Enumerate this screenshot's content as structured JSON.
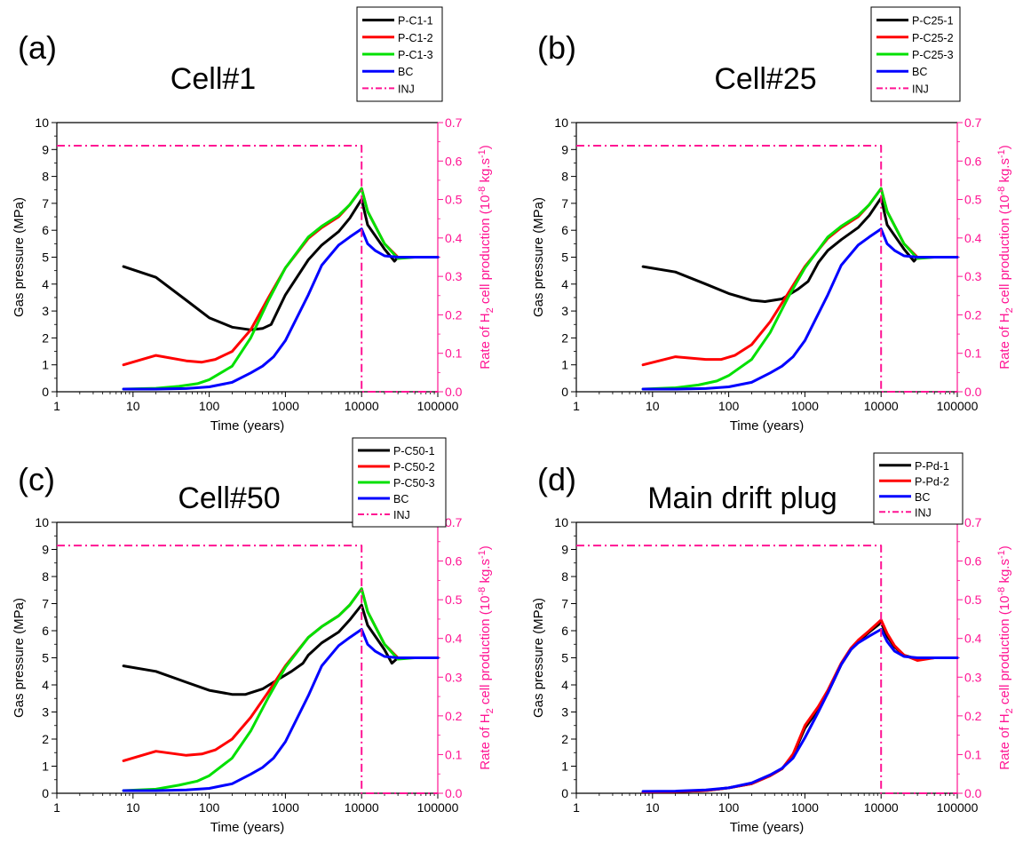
{
  "colors": {
    "black": "#000000",
    "red": "#ff0000",
    "green": "#00e000",
    "blue": "#0000ff",
    "inj": "#ff1493"
  },
  "shared": {
    "xlabel": "Time (years)",
    "ylabel_left": "Gas pressure (MPa)",
    "ylabel_right_prefix": "Rate of H",
    "ylabel_right_sub": "2",
    "ylabel_right_mid": " cell production (10",
    "ylabel_right_sup1": "-8",
    "ylabel_right_mid2": " kg.s",
    "ylabel_right_sup2": "-1",
    "ylabel_right_end": ")",
    "xticks": [
      "1",
      "10",
      "100",
      "1000",
      "10000",
      "100000"
    ],
    "yticks_left": [
      "0",
      "1",
      "2",
      "3",
      "4",
      "5",
      "6",
      "7",
      "8",
      "9",
      "10"
    ],
    "yticks_right": [
      "0.0",
      "0.1",
      "0.2",
      "0.3",
      "0.4",
      "0.5",
      "0.6",
      "0.7"
    ]
  },
  "chart_data": [
    {
      "type": "line",
      "panel_label": "(a)",
      "title": "Cell#1",
      "x_scale": "log",
      "xlim": [
        1,
        100000
      ],
      "ylim": [
        0,
        10
      ],
      "ylim_right": [
        0,
        0.7
      ],
      "legend": "top-right",
      "series": [
        {
          "name": "P-C1-1",
          "color": "black",
          "axis": "left",
          "x": [
            7.5,
            20,
            50,
            100,
            200,
            350,
            500,
            650,
            1000,
            2000,
            3000,
            5000,
            7000,
            10000,
            12000,
            20000,
            27000,
            30000,
            50000,
            100000
          ],
          "y": [
            4.65,
            4.25,
            3.4,
            2.75,
            2.4,
            2.3,
            2.35,
            2.5,
            3.6,
            4.9,
            5.45,
            5.95,
            6.45,
            7.15,
            6.2,
            5.3,
            4.85,
            5.0,
            5.0,
            5.0
          ]
        },
        {
          "name": "P-C1-2",
          "color": "red",
          "axis": "left",
          "x": [
            7.5,
            20,
            50,
            80,
            120,
            200,
            350,
            600,
            1000,
            2000,
            3000,
            5000,
            7000,
            10000,
            12000,
            20000,
            30000,
            50000,
            100000
          ],
          "y": [
            1.0,
            1.35,
            1.15,
            1.1,
            1.2,
            1.5,
            2.3,
            3.5,
            4.6,
            5.7,
            6.1,
            6.5,
            6.95,
            7.55,
            6.7,
            5.5,
            5.0,
            5.0,
            5.0
          ]
        },
        {
          "name": "P-C1-3",
          "color": "green",
          "axis": "left",
          "x": [
            7.5,
            20,
            40,
            70,
            100,
            200,
            350,
            600,
            1000,
            2000,
            3000,
            5000,
            7000,
            10000,
            12000,
            20000,
            30000,
            50000,
            100000
          ],
          "y": [
            0.1,
            0.13,
            0.2,
            0.3,
            0.45,
            0.95,
            2.0,
            3.4,
            4.6,
            5.75,
            6.15,
            6.55,
            6.95,
            7.55,
            6.7,
            5.5,
            4.95,
            5.0,
            5.0
          ]
        },
        {
          "name": "BC",
          "color": "blue",
          "axis": "left",
          "x": [
            7.5,
            20,
            50,
            100,
            200,
            350,
            500,
            700,
            1000,
            2000,
            3000,
            5000,
            7000,
            10000,
            12000,
            15000,
            20000,
            30000,
            50000,
            100000
          ],
          "y": [
            0.1,
            0.1,
            0.12,
            0.18,
            0.35,
            0.7,
            0.95,
            1.3,
            1.9,
            3.6,
            4.7,
            5.45,
            5.75,
            6.05,
            5.5,
            5.25,
            5.05,
            5.0,
            5.0,
            5.0
          ]
        },
        {
          "name": "INJ",
          "color": "inj",
          "axis": "right",
          "dash": true,
          "x": [
            1,
            10000,
            10000,
            100000
          ],
          "y": [
            0.64,
            0.64,
            0.0,
            0.0
          ]
        }
      ]
    },
    {
      "type": "line",
      "panel_label": "(b)",
      "title": "Cell#25",
      "x_scale": "log",
      "xlim": [
        1,
        100000
      ],
      "ylim": [
        0,
        10
      ],
      "ylim_right": [
        0,
        0.7
      ],
      "legend": "top-right",
      "series": [
        {
          "name": "P-C25-1",
          "color": "black",
          "axis": "left",
          "x": [
            7.5,
            20,
            50,
            100,
            200,
            300,
            500,
            800,
            1100,
            1500,
            2000,
            3000,
            5000,
            7000,
            10000,
            12000,
            20000,
            27000,
            30000,
            50000,
            100000
          ],
          "y": [
            4.65,
            4.45,
            4.0,
            3.65,
            3.4,
            3.35,
            3.45,
            3.8,
            4.1,
            4.8,
            5.25,
            5.65,
            6.1,
            6.55,
            7.2,
            6.2,
            5.3,
            4.85,
            5.0,
            5.0,
            5.0
          ]
        },
        {
          "name": "P-C25-2",
          "color": "red",
          "axis": "left",
          "x": [
            7.5,
            20,
            50,
            80,
            120,
            200,
            350,
            600,
            1000,
            2000,
            3000,
            5000,
            7000,
            10000,
            12000,
            20000,
            30000,
            50000,
            100000
          ],
          "y": [
            1.0,
            1.3,
            1.2,
            1.2,
            1.35,
            1.75,
            2.6,
            3.65,
            4.65,
            5.7,
            6.1,
            6.5,
            6.95,
            7.55,
            6.7,
            5.5,
            5.0,
            5.0,
            5.0
          ]
        },
        {
          "name": "P-C25-3",
          "color": "green",
          "axis": "left",
          "x": [
            7.5,
            20,
            40,
            70,
            100,
            200,
            350,
            600,
            1000,
            2000,
            3000,
            5000,
            7000,
            10000,
            12000,
            20000,
            30000,
            50000,
            100000
          ],
          "y": [
            0.1,
            0.15,
            0.25,
            0.4,
            0.6,
            1.2,
            2.2,
            3.5,
            4.6,
            5.75,
            6.15,
            6.55,
            6.95,
            7.55,
            6.7,
            5.5,
            4.95,
            5.0,
            5.0
          ]
        },
        {
          "name": "BC",
          "color": "blue",
          "axis": "left",
          "x": [
            7.5,
            20,
            50,
            100,
            200,
            350,
            500,
            700,
            1000,
            2000,
            3000,
            5000,
            7000,
            10000,
            12000,
            15000,
            20000,
            30000,
            50000,
            100000
          ],
          "y": [
            0.1,
            0.1,
            0.12,
            0.18,
            0.35,
            0.7,
            0.95,
            1.3,
            1.9,
            3.6,
            4.7,
            5.45,
            5.75,
            6.05,
            5.5,
            5.25,
            5.05,
            5.0,
            5.0,
            5.0
          ]
        },
        {
          "name": "INJ",
          "color": "inj",
          "axis": "right",
          "dash": true,
          "x": [
            1,
            10000,
            10000,
            100000
          ],
          "y": [
            0.64,
            0.64,
            0.0,
            0.0
          ]
        }
      ]
    },
    {
      "type": "line",
      "panel_label": "(c)",
      "title": "Cell#50",
      "x_scale": "log",
      "xlim": [
        1,
        100000
      ],
      "ylim": [
        0,
        10
      ],
      "ylim_right": [
        0,
        0.7
      ],
      "legend": "top-right",
      "series": [
        {
          "name": "P-C50-1",
          "color": "black",
          "axis": "left",
          "x": [
            7.5,
            20,
            50,
            100,
            200,
            300,
            500,
            800,
            1200,
            1700,
            2000,
            3000,
            5000,
            7000,
            10000,
            12000,
            20000,
            25000,
            30000,
            50000,
            100000
          ],
          "y": [
            4.7,
            4.5,
            4.1,
            3.8,
            3.65,
            3.65,
            3.85,
            4.2,
            4.5,
            4.8,
            5.1,
            5.55,
            5.95,
            6.4,
            6.95,
            6.2,
            5.3,
            4.8,
            5.0,
            5.0,
            5.0
          ]
        },
        {
          "name": "P-C50-2",
          "color": "red",
          "axis": "left",
          "x": [
            7.5,
            20,
            50,
            80,
            120,
            200,
            350,
            600,
            1000,
            2000,
            3000,
            5000,
            7000,
            10000,
            12000,
            20000,
            30000,
            50000,
            100000
          ],
          "y": [
            1.2,
            1.55,
            1.4,
            1.45,
            1.6,
            2.0,
            2.8,
            3.75,
            4.7,
            5.75,
            6.15,
            6.55,
            6.95,
            7.55,
            6.7,
            5.5,
            5.0,
            5.0,
            5.0
          ]
        },
        {
          "name": "P-C50-3",
          "color": "green",
          "axis": "left",
          "x": [
            7.5,
            20,
            40,
            70,
            100,
            200,
            350,
            600,
            1000,
            2000,
            3000,
            5000,
            7000,
            10000,
            12000,
            20000,
            30000,
            50000,
            100000
          ],
          "y": [
            0.1,
            0.15,
            0.3,
            0.45,
            0.65,
            1.3,
            2.3,
            3.55,
            4.65,
            5.75,
            6.15,
            6.55,
            6.95,
            7.55,
            6.7,
            5.5,
            4.95,
            5.0,
            5.0
          ]
        },
        {
          "name": "BC",
          "color": "blue",
          "axis": "left",
          "x": [
            7.5,
            20,
            50,
            100,
            200,
            350,
            500,
            700,
            1000,
            2000,
            3000,
            5000,
            7000,
            10000,
            12000,
            15000,
            20000,
            30000,
            50000,
            100000
          ],
          "y": [
            0.1,
            0.1,
            0.12,
            0.18,
            0.35,
            0.7,
            0.95,
            1.3,
            1.9,
            3.6,
            4.7,
            5.45,
            5.75,
            6.05,
            5.5,
            5.25,
            5.05,
            5.0,
            5.0,
            5.0
          ]
        },
        {
          "name": "INJ",
          "color": "inj",
          "axis": "right",
          "dash": true,
          "x": [
            1,
            10000,
            10000,
            100000
          ],
          "y": [
            0.64,
            0.64,
            0.0,
            0.0
          ]
        }
      ]
    },
    {
      "type": "line",
      "panel_label": "(d)",
      "title": "Main drift plug",
      "x_scale": "log",
      "xlim": [
        1,
        100000
      ],
      "ylim": [
        0,
        10
      ],
      "ylim_right": [
        0,
        0.7
      ],
      "legend": "top-right",
      "series": [
        {
          "name": "P-Pd-1",
          "color": "black",
          "axis": "left",
          "x": [
            7.5,
            20,
            50,
            100,
            200,
            350,
            500,
            700,
            1000,
            1500,
            2000,
            3000,
            4000,
            5000,
            7000,
            10000,
            12000,
            15000,
            20000,
            30000,
            50000,
            100000
          ],
          "y": [
            0.05,
            0.06,
            0.1,
            0.2,
            0.35,
            0.65,
            0.9,
            1.4,
            2.4,
            3.1,
            3.7,
            4.75,
            5.3,
            5.6,
            5.95,
            6.3,
            5.8,
            5.4,
            5.1,
            4.95,
            5.0,
            5.0
          ]
        },
        {
          "name": "P-Pd-2",
          "color": "red",
          "axis": "left",
          "x": [
            7.5,
            20,
            50,
            100,
            200,
            350,
            500,
            700,
            1000,
            1500,
            2000,
            3000,
            4000,
            5000,
            7000,
            10000,
            12000,
            15000,
            20000,
            30000,
            50000,
            100000
          ],
          "y": [
            0.05,
            0.06,
            0.1,
            0.2,
            0.35,
            0.65,
            0.9,
            1.45,
            2.5,
            3.2,
            3.8,
            4.8,
            5.35,
            5.65,
            6.0,
            6.4,
            5.9,
            5.45,
            5.1,
            4.9,
            5.0,
            5.0
          ]
        },
        {
          "name": "BC",
          "color": "blue",
          "axis": "left",
          "x": [
            7.5,
            20,
            50,
            100,
            200,
            350,
            500,
            700,
            1000,
            1500,
            2000,
            3000,
            4000,
            5000,
            7000,
            10000,
            12000,
            15000,
            20000,
            30000,
            50000,
            100000
          ],
          "y": [
            0.07,
            0.08,
            0.12,
            0.2,
            0.38,
            0.68,
            0.92,
            1.3,
            2.05,
            3.0,
            3.7,
            4.75,
            5.3,
            5.55,
            5.8,
            6.05,
            5.6,
            5.25,
            5.05,
            5.0,
            5.0,
            5.0
          ]
        },
        {
          "name": "INJ",
          "color": "inj",
          "axis": "right",
          "dash": true,
          "x": [
            1,
            10000,
            10000,
            100000
          ],
          "y": [
            0.64,
            0.64,
            0.0,
            0.0
          ]
        }
      ]
    }
  ]
}
